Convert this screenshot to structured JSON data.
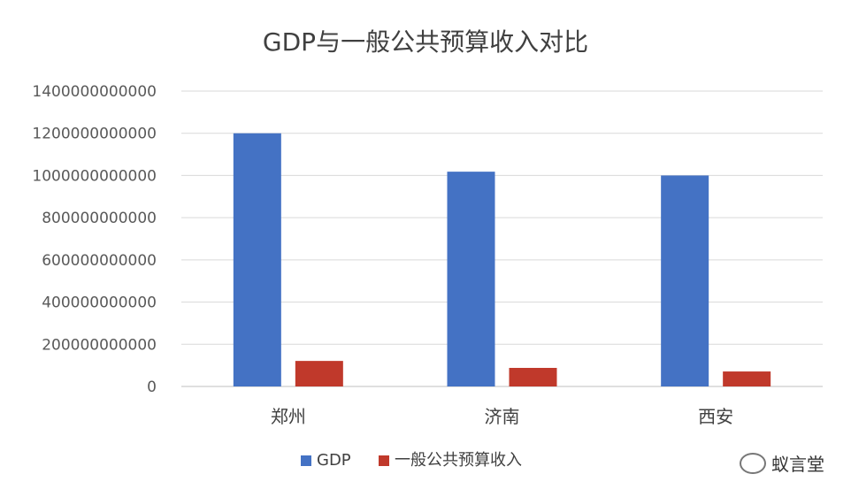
{
  "chart_data": {
    "type": "bar",
    "title": "GDP与一般公共预算收入对比",
    "categories": [
      "郑州",
      "济南",
      "西安"
    ],
    "series": [
      {
        "name": "GDP",
        "color": "#4472C4",
        "values": [
          1200000000000,
          1018000000000,
          1000000000000
        ]
      },
      {
        "name": "一般公共预算收入",
        "color": "#C0392B",
        "values": [
          121000000000,
          88000000000,
          71000000000
        ]
      }
    ],
    "ylim": [
      0,
      1400000000000
    ],
    "yticks": [
      0,
      200000000000,
      400000000000,
      600000000000,
      800000000000,
      1000000000000,
      1200000000000,
      1400000000000
    ],
    "ytick_labels": [
      "0",
      "200000000000",
      "400000000000",
      "600000000000",
      "800000000000",
      "1000000000000",
      "1200000000000",
      "1400000000000"
    ],
    "grid": true,
    "legend_position": "bottom"
  },
  "watermark": {
    "text": "蚁言堂",
    "icon": "wechat-icon"
  }
}
